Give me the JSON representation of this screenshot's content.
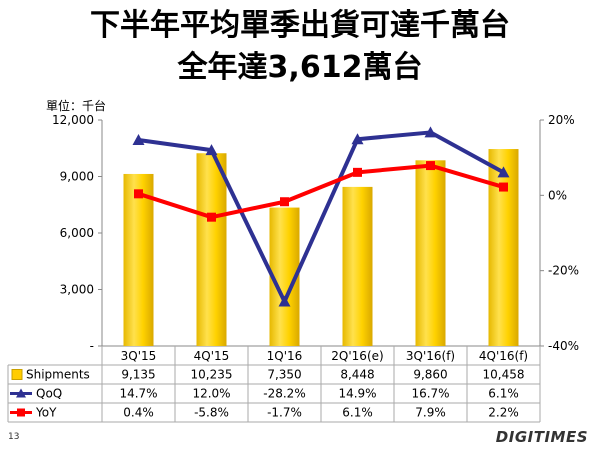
{
  "slide": {
    "title_line1": "下半年平均單季出貨可達千萬台",
    "title_line2": "全年達3,612萬台",
    "unit_label": "單位：千台",
    "page_number": "13",
    "logo_text": "DIGITIMES"
  },
  "chart_data": {
    "type": "bar",
    "categories": [
      "3Q'15",
      "4Q'15",
      "1Q'16",
      "2Q'16(e)",
      "3Q'16(f)",
      "4Q'16(f)"
    ],
    "series": [
      {
        "name": "Shipments",
        "kind": "bar",
        "axis": "left",
        "color": "#FFCC00",
        "values": [
          9135,
          10235,
          7350,
          8448,
          9860,
          10458
        ],
        "labels": [
          "9,135",
          "10,235",
          "7,350",
          "8,448",
          "9,860",
          "10,458"
        ]
      },
      {
        "name": "QoQ",
        "kind": "line",
        "axis": "right",
        "color": "#2E3192",
        "marker": "triangle",
        "values": [
          14.7,
          12.0,
          -28.2,
          14.9,
          16.7,
          6.1
        ],
        "labels": [
          "14.7%",
          "12.0%",
          "-28.2%",
          "14.9%",
          "16.7%",
          "6.1%"
        ]
      },
      {
        "name": "YoY",
        "kind": "line",
        "axis": "right",
        "color": "#FF0000",
        "marker": "square",
        "values": [
          0.4,
          -5.8,
          -1.7,
          6.1,
          7.9,
          2.2
        ],
        "labels": [
          "0.4%",
          "-5.8%",
          "-1.7%",
          "6.1%",
          "7.9%",
          "2.2%"
        ]
      }
    ],
    "y_left": {
      "range": [
        0,
        12000
      ],
      "ticks": [
        0,
        3000,
        6000,
        9000,
        12000
      ],
      "tick_labels": [
        "-",
        "3,000",
        "6,000",
        "9,000",
        "12,000"
      ]
    },
    "y_right": {
      "range": [
        -40,
        20
      ],
      "ticks": [
        -40,
        -20,
        0,
        20
      ],
      "tick_labels": [
        "-40%",
        "-20%",
        "0%",
        "20%"
      ]
    },
    "grid": false,
    "legend": "data-table"
  }
}
